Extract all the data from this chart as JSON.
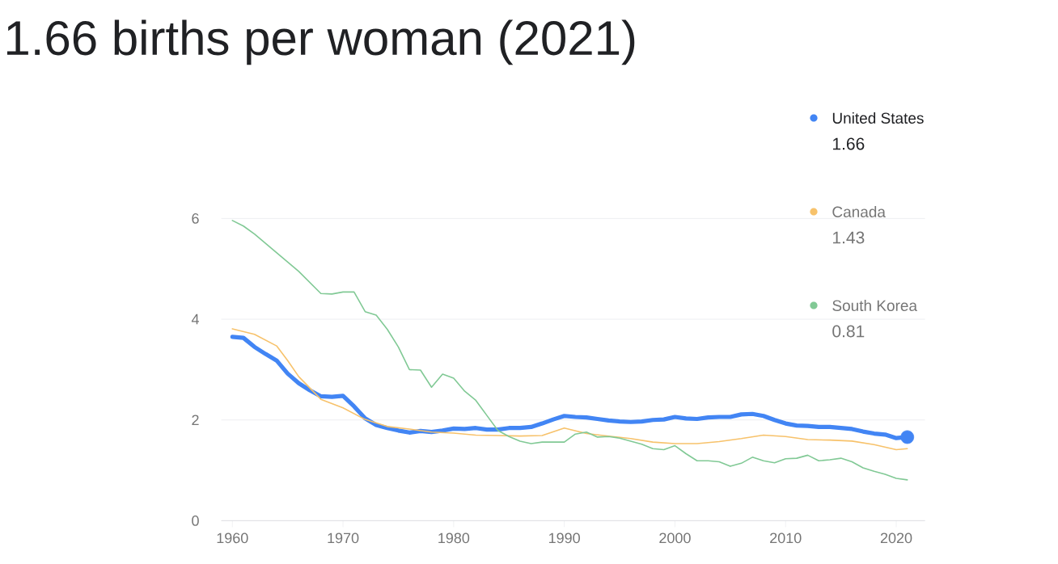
{
  "chart_data": {
    "type": "line",
    "title": "1.66 births per woman (2021)",
    "xlim": [
      1959,
      2022.6
    ],
    "ylim": [
      0,
      6
    ],
    "xticks": [
      1960,
      1970,
      1980,
      1990,
      2000,
      2010,
      2020
    ],
    "yticks": [
      0,
      2,
      4,
      6
    ],
    "grid": "y",
    "legend": "right",
    "annotations": [
      "1.66",
      "1.43",
      "0.81"
    ],
    "series": [
      {
        "name": "United States",
        "color": "#4285f4",
        "x": [
          1960,
          1961,
          1962,
          1963,
          1964,
          1965,
          1966,
          1967,
          1968,
          1969,
          1970,
          1971,
          1972,
          1973,
          1974,
          1975,
          1976,
          1977,
          1978,
          1979,
          1980,
          1981,
          1982,
          1983,
          1984,
          1985,
          1986,
          1987,
          1988,
          1989,
          1990,
          1991,
          1992,
          1993,
          1994,
          1995,
          1996,
          1997,
          1998,
          1999,
          2000,
          2001,
          2002,
          2003,
          2004,
          2005,
          2006,
          2007,
          2008,
          2009,
          2010,
          2011,
          2012,
          2013,
          2014,
          2015,
          2016,
          2017,
          2018,
          2019,
          2020,
          2021
        ],
        "values": [
          3.65,
          3.63,
          3.45,
          3.31,
          3.18,
          2.92,
          2.73,
          2.59,
          2.47,
          2.46,
          2.48,
          2.27,
          2.03,
          1.9,
          1.84,
          1.79,
          1.75,
          1.78,
          1.76,
          1.79,
          1.83,
          1.82,
          1.84,
          1.81,
          1.81,
          1.84,
          1.84,
          1.86,
          1.93,
          2.01,
          2.08,
          2.06,
          2.05,
          2.02,
          1.99,
          1.97,
          1.96,
          1.97,
          2.0,
          2.01,
          2.06,
          2.03,
          2.02,
          2.05,
          2.06,
          2.06,
          2.11,
          2.12,
          2.08,
          2.0,
          1.93,
          1.89,
          1.88,
          1.86,
          1.86,
          1.84,
          1.82,
          1.77,
          1.73,
          1.71,
          1.64,
          1.66
        ]
      },
      {
        "name": "Canada",
        "color": "#f7c26b",
        "x": [
          1960,
          1962,
          1964,
          1965,
          1966,
          1968,
          1970,
          1972,
          1974,
          1976,
          1978,
          1980,
          1982,
          1984,
          1986,
          1988,
          1990,
          1992,
          1994,
          1996,
          1998,
          2000,
          2002,
          2004,
          2006,
          2008,
          2010,
          2012,
          2014,
          2016,
          2018,
          2020,
          2021
        ],
        "values": [
          3.81,
          3.7,
          3.47,
          3.18,
          2.86,
          2.41,
          2.24,
          2.01,
          1.87,
          1.82,
          1.76,
          1.74,
          1.7,
          1.69,
          1.68,
          1.69,
          1.84,
          1.73,
          1.68,
          1.63,
          1.56,
          1.53,
          1.53,
          1.57,
          1.63,
          1.7,
          1.67,
          1.61,
          1.6,
          1.58,
          1.51,
          1.41,
          1.43
        ]
      },
      {
        "name": "South Korea",
        "color": "#81c995",
        "x": [
          1960,
          1961,
          1962,
          1964,
          1966,
          1968,
          1969,
          1970,
          1971,
          1972,
          1973,
          1974,
          1975,
          1976,
          1977,
          1978,
          1979,
          1980,
          1981,
          1982,
          1983,
          1984,
          1985,
          1986,
          1987,
          1988,
          1989,
          1990,
          1991,
          1992,
          1993,
          1994,
          1995,
          1996,
          1997,
          1998,
          1999,
          2000,
          2001,
          2002,
          2003,
          2004,
          2005,
          2006,
          2007,
          2008,
          2009,
          2010,
          2011,
          2012,
          2013,
          2014,
          2015,
          2016,
          2017,
          2018,
          2019,
          2020,
          2021
        ],
        "values": [
          5.96,
          5.85,
          5.69,
          5.32,
          4.95,
          4.51,
          4.5,
          4.54,
          4.54,
          4.15,
          4.08,
          3.8,
          3.45,
          3.0,
          2.99,
          2.65,
          2.91,
          2.83,
          2.57,
          2.39,
          2.09,
          1.79,
          1.67,
          1.58,
          1.53,
          1.56,
          1.56,
          1.56,
          1.72,
          1.76,
          1.66,
          1.67,
          1.64,
          1.58,
          1.52,
          1.43,
          1.41,
          1.49,
          1.33,
          1.19,
          1.19,
          1.17,
          1.08,
          1.14,
          1.26,
          1.19,
          1.15,
          1.23,
          1.24,
          1.3,
          1.19,
          1.21,
          1.24,
          1.17,
          1.05,
          0.98,
          0.92,
          0.84,
          0.81
        ]
      }
    ]
  }
}
